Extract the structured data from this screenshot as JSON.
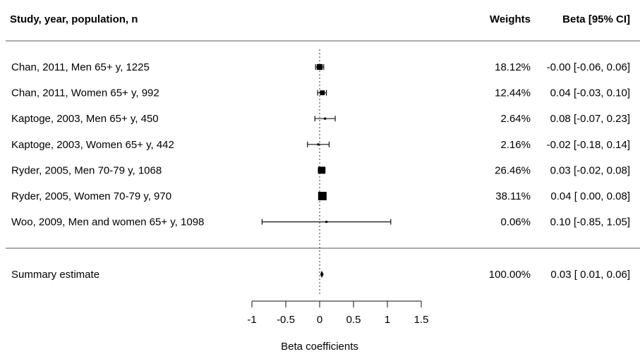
{
  "headers": {
    "study": "Study, year, population, n",
    "weights": "Weights",
    "beta": "Beta [95% CI]"
  },
  "chart_data": {
    "type": "forest",
    "xlabel": "Beta coefficients",
    "xlim": [
      -1,
      1.5
    ],
    "xticks": [
      "-1",
      "-0.5",
      "0",
      "0.5",
      "1",
      "1.5"
    ],
    "reference_line": 0,
    "studies": [
      {
        "label": "Chan, 2011, Men 65+ y, 1225",
        "beta": -0.0,
        "lo": -0.06,
        "hi": 0.06,
        "weight": 18.12,
        "weight_text": "18.12%",
        "ci_text": "-0.00 [-0.06, 0.06]"
      },
      {
        "label": "Chan, 2011, Women 65+ y, 992",
        "beta": 0.04,
        "lo": -0.03,
        "hi": 0.1,
        "weight": 12.44,
        "weight_text": "12.44%",
        "ci_text": "0.04 [-0.03, 0.10]"
      },
      {
        "label": "Kaptoge, 2003, Men 65+ y, 450",
        "beta": 0.08,
        "lo": -0.07,
        "hi": 0.23,
        "weight": 2.64,
        "weight_text": "2.64%",
        "ci_text": "0.08 [-0.07, 0.23]"
      },
      {
        "label": "Kaptoge, 2003, Women 65+ y, 442",
        "beta": -0.02,
        "lo": -0.18,
        "hi": 0.14,
        "weight": 2.16,
        "weight_text": "2.16%",
        "ci_text": "-0.02 [-0.18, 0.14]"
      },
      {
        "label": "Ryder, 2005, Men 70-79 y, 1068",
        "beta": 0.03,
        "lo": -0.02,
        "hi": 0.08,
        "weight": 26.46,
        "weight_text": "26.46%",
        "ci_text": "0.03 [-0.02, 0.08]"
      },
      {
        "label": "Ryder, 2005, Women 70-79 y, 970",
        "beta": 0.04,
        "lo": 0.0,
        "hi": 0.08,
        "weight": 38.11,
        "weight_text": "38.11%",
        "ci_text": "0.04 [ 0.00, 0.08]"
      },
      {
        "label": "Woo, 2009, Men and women 65+ y, 1098",
        "beta": 0.1,
        "lo": -0.85,
        "hi": 1.05,
        "weight": 0.06,
        "weight_text": "0.06%",
        "ci_text": "0.10 [-0.85, 1.05]"
      }
    ],
    "summary": {
      "label": "Summary estimate",
      "beta": 0.03,
      "lo": 0.01,
      "hi": 0.06,
      "weight_text": "100.00%",
      "ci_text": "0.03 [ 0.01, 0.06]"
    }
  }
}
